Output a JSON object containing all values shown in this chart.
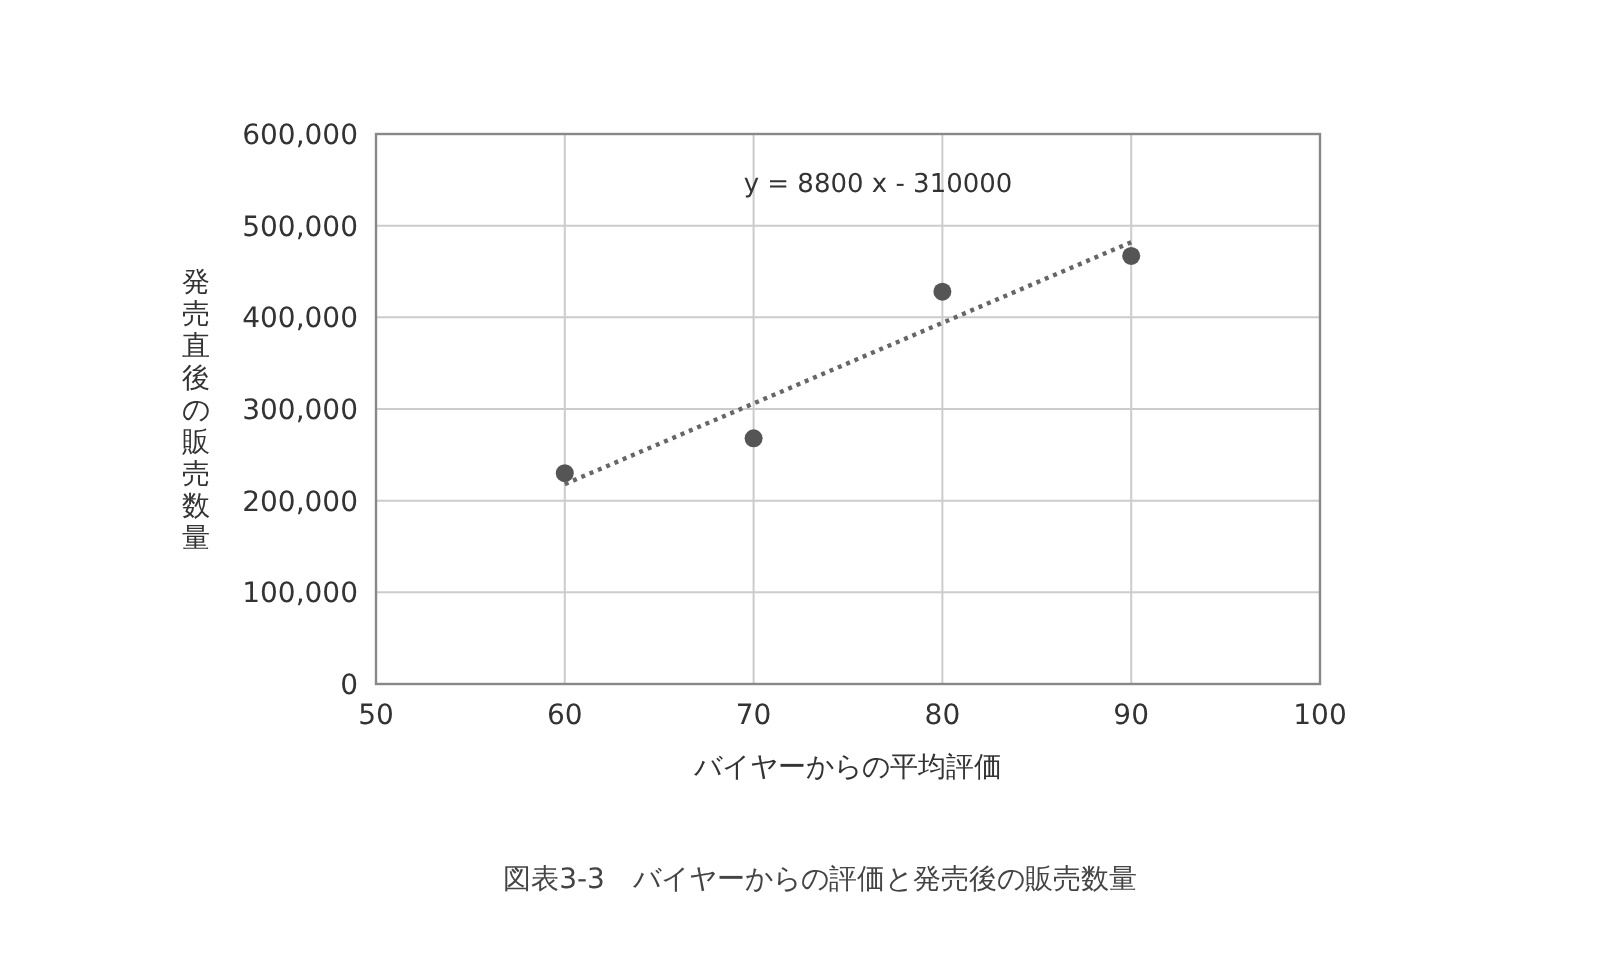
{
  "chart_data": {
    "type": "scatter",
    "xlabel": "バイヤーからの平均評価",
    "ylabel": "発売直後の販売数量",
    "xlim": [
      50,
      100
    ],
    "ylim": [
      0,
      600000
    ],
    "xticks": [
      50,
      60,
      70,
      80,
      90,
      100
    ],
    "yticks": [
      {
        "value": 0,
        "label": "0"
      },
      {
        "value": 100000,
        "label": "100,000"
      },
      {
        "value": 200000,
        "label": "200,000"
      },
      {
        "value": 300000,
        "label": "300,000"
      },
      {
        "value": 400000,
        "label": "400,000"
      },
      {
        "value": 500000,
        "label": "500,000"
      },
      {
        "value": 600000,
        "label": "600,000"
      }
    ],
    "grid": true,
    "series": [
      {
        "marker": "circle",
        "color": "#555555",
        "x": [
          60,
          70,
          80,
          90
        ],
        "values": [
          230000,
          268000,
          428000,
          467000
        ]
      },
      {
        "type": "line",
        "line_style": "dotted",
        "marker": "none",
        "color": "#666666",
        "x": [
          60,
          90
        ],
        "values": [
          218000,
          482000
        ]
      }
    ],
    "annotations": [
      "y = 8800 x - 310000",
      "図表3-3　バイヤーからの評価と発売後の販売数量"
    ]
  }
}
